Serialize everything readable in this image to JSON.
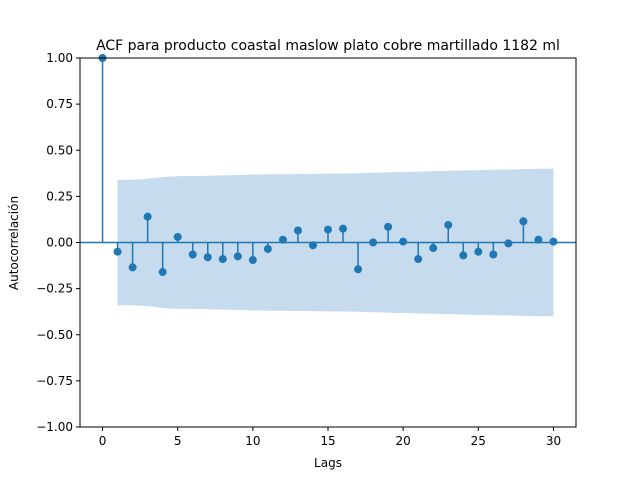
{
  "chart_data": {
    "type": "scatter",
    "subtype": "stem",
    "title": "ACF para producto coastal maslow plato cobre martillado 1182 ml",
    "xlabel": "Lags",
    "ylabel": "Autocorrelación",
    "xlim": [
      -1.5,
      31.5
    ],
    "ylim": [
      -1.0,
      1.0
    ],
    "xticks": [
      0,
      5,
      10,
      15,
      20,
      25,
      30
    ],
    "xtick_labels": [
      "0",
      "5",
      "10",
      "15",
      "20",
      "25",
      "30"
    ],
    "yticks": [
      -1.0,
      -0.75,
      -0.5,
      -0.25,
      0.0,
      0.25,
      0.5,
      0.75,
      1.0
    ],
    "ytick_labels": [
      "−1.00",
      "−0.75",
      "−0.50",
      "−0.25",
      "0.00",
      "0.25",
      "0.50",
      "0.75",
      "1.00"
    ],
    "grid": false,
    "lags": [
      0,
      1,
      2,
      3,
      4,
      5,
      6,
      7,
      8,
      9,
      10,
      11,
      12,
      13,
      14,
      15,
      16,
      17,
      18,
      19,
      20,
      21,
      22,
      23,
      24,
      25,
      26,
      27,
      28,
      29,
      30
    ],
    "acf": [
      1.0,
      -0.05,
      -0.135,
      0.14,
      -0.16,
      0.03,
      -0.065,
      -0.08,
      -0.09,
      -0.075,
      -0.095,
      -0.035,
      0.015,
      0.065,
      -0.015,
      0.07,
      0.075,
      -0.145,
      0.0,
      0.085,
      0.005,
      -0.09,
      -0.03,
      0.095,
      -0.07,
      -0.05,
      -0.065,
      -0.005,
      0.115,
      0.015,
      0.005
    ],
    "confidence_band": {
      "lags": [
        1,
        2,
        3,
        4,
        5,
        6,
        7,
        8,
        9,
        10,
        11,
        12,
        13,
        14,
        15,
        16,
        17,
        18,
        19,
        20,
        21,
        22,
        23,
        24,
        25,
        26,
        27,
        28,
        29,
        30
      ],
      "upper": [
        0.34,
        0.34,
        0.345,
        0.355,
        0.36,
        0.36,
        0.362,
        0.364,
        0.366,
        0.368,
        0.37,
        0.37,
        0.371,
        0.372,
        0.373,
        0.374,
        0.375,
        0.378,
        0.38,
        0.382,
        0.384,
        0.386,
        0.388,
        0.39,
        0.392,
        0.394,
        0.396,
        0.398,
        0.4,
        0.4
      ],
      "lower": [
        -0.34,
        -0.34,
        -0.345,
        -0.355,
        -0.36,
        -0.36,
        -0.362,
        -0.364,
        -0.366,
        -0.368,
        -0.37,
        -0.37,
        -0.371,
        -0.372,
        -0.373,
        -0.374,
        -0.375,
        -0.378,
        -0.38,
        -0.382,
        -0.384,
        -0.386,
        -0.388,
        -0.39,
        -0.392,
        -0.394,
        -0.396,
        -0.398,
        -0.4,
        -0.4
      ]
    },
    "colors": {
      "stem": "#1f77b4",
      "band": "#c6dbed",
      "axis": "#000000"
    }
  }
}
